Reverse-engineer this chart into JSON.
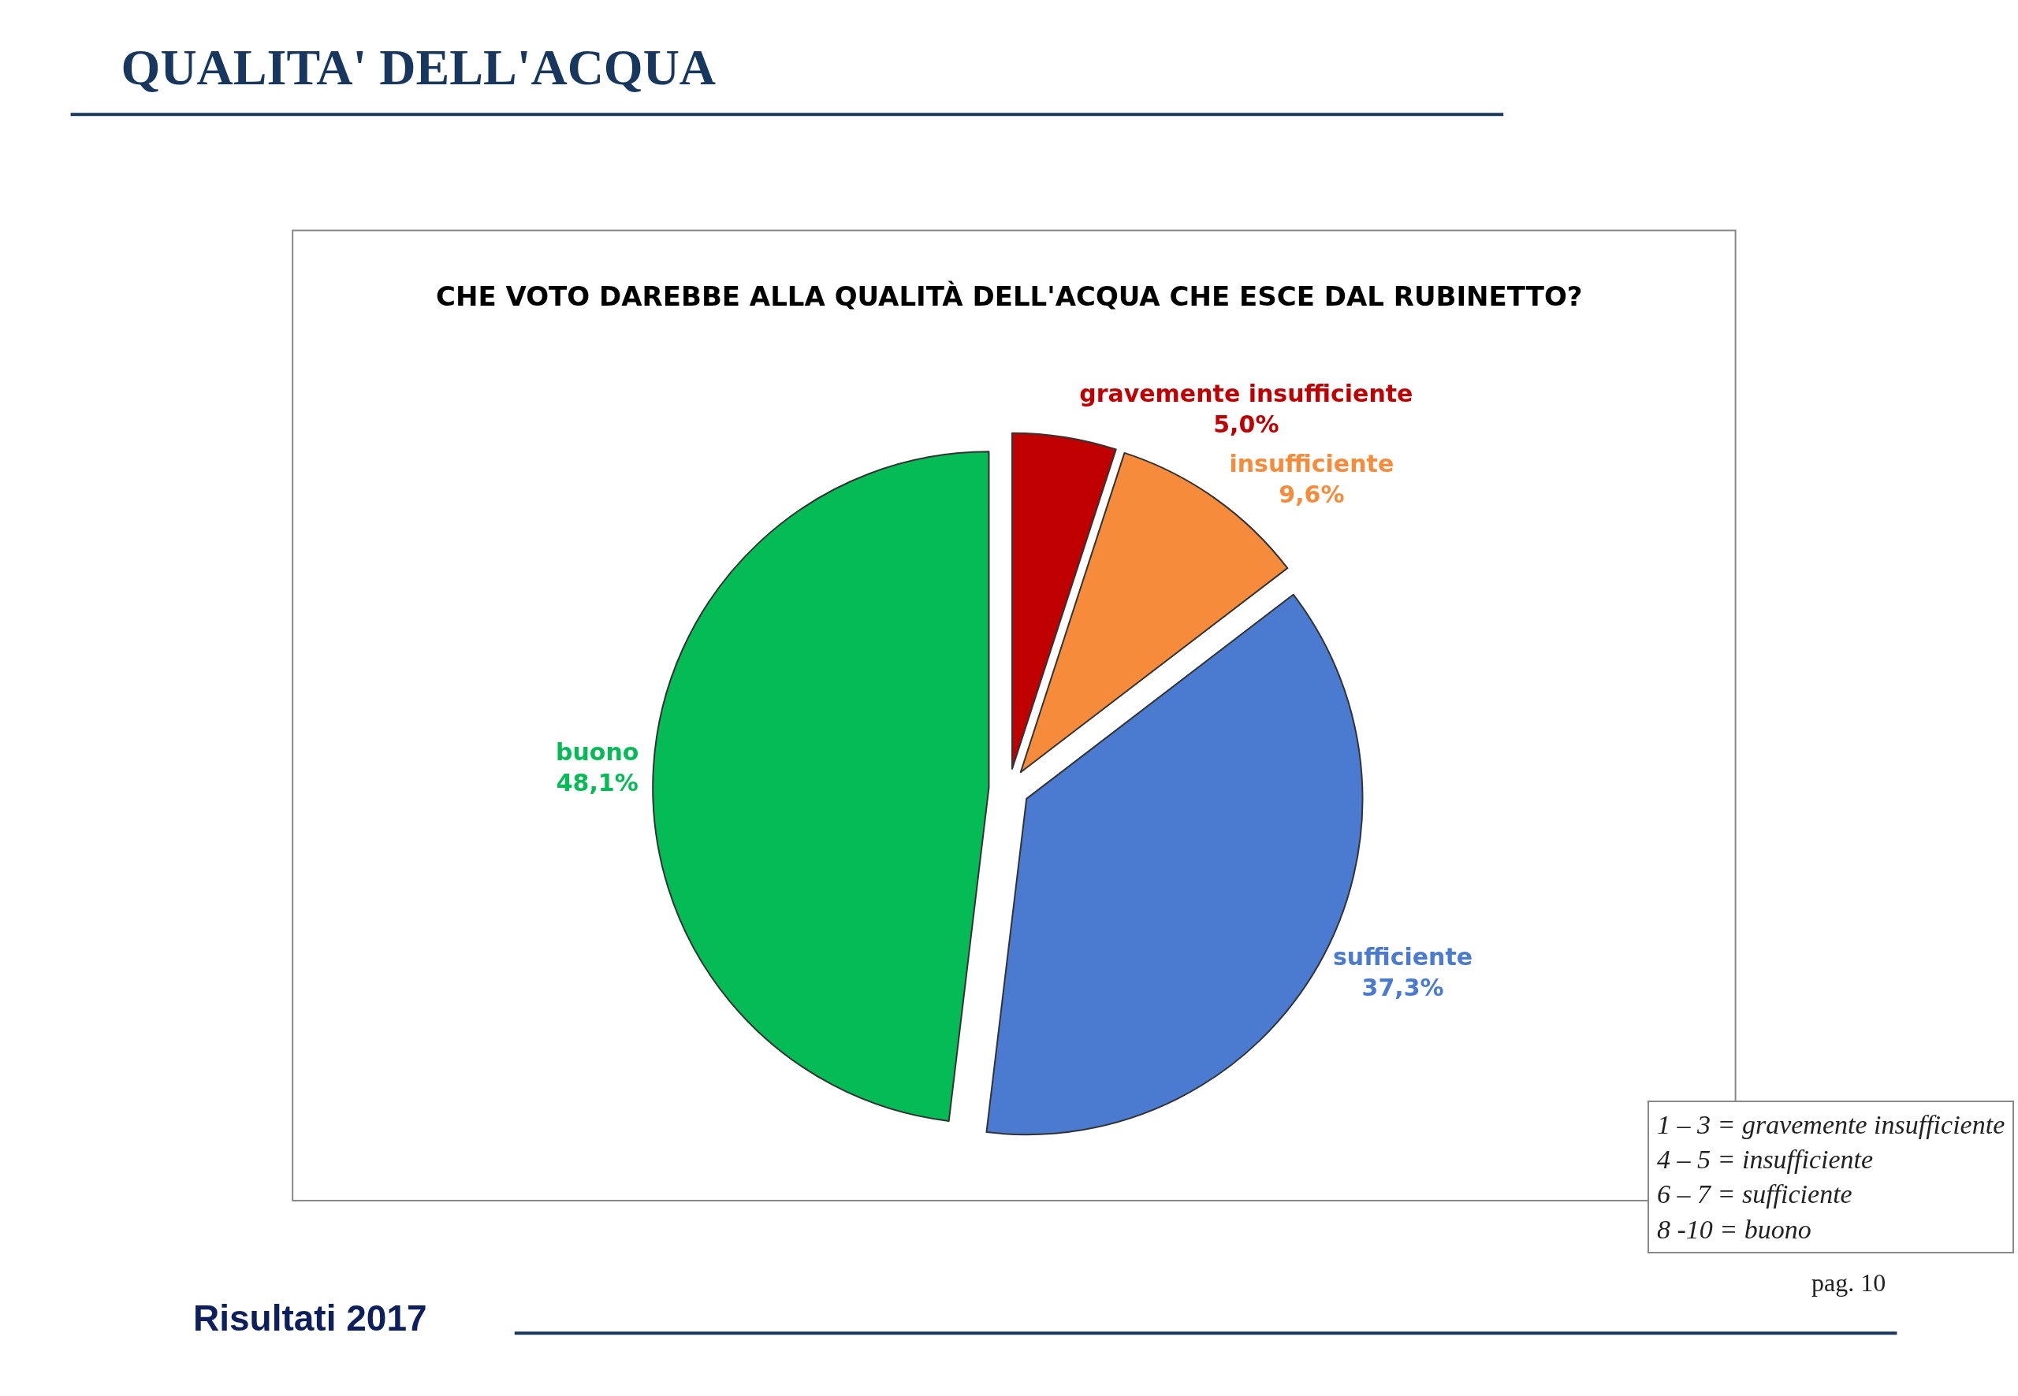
{
  "chart_data": {
    "type": "pie",
    "title": "QUALITA' DELL'ACQUA",
    "subtitle": "CHE VOTO DAREBBE ALLA QUALITÀ DELL'ACQUA CHE ESCE DAL RUBINETTO?",
    "categories": [
      "gravemente insufficiente",
      "insufficiente",
      "sufficiente",
      "buono"
    ],
    "values": [
      5.0,
      9.6,
      37.3,
      48.1
    ],
    "value_labels": [
      "5,0%",
      "9,6%",
      "37,3%",
      "48,1%"
    ],
    "colors": [
      "#c00000",
      "#f68b3c",
      "#4a7bd0",
      "#05bb55"
    ],
    "legend": false,
    "annotations": [
      "1 – 3 = gravemente insufficiente",
      "4 – 5 = insufficiente",
      "6 – 7 = sufficiente",
      "8 -10 = buono",
      "Risultati 2017",
      "pag. 10"
    ]
  }
}
